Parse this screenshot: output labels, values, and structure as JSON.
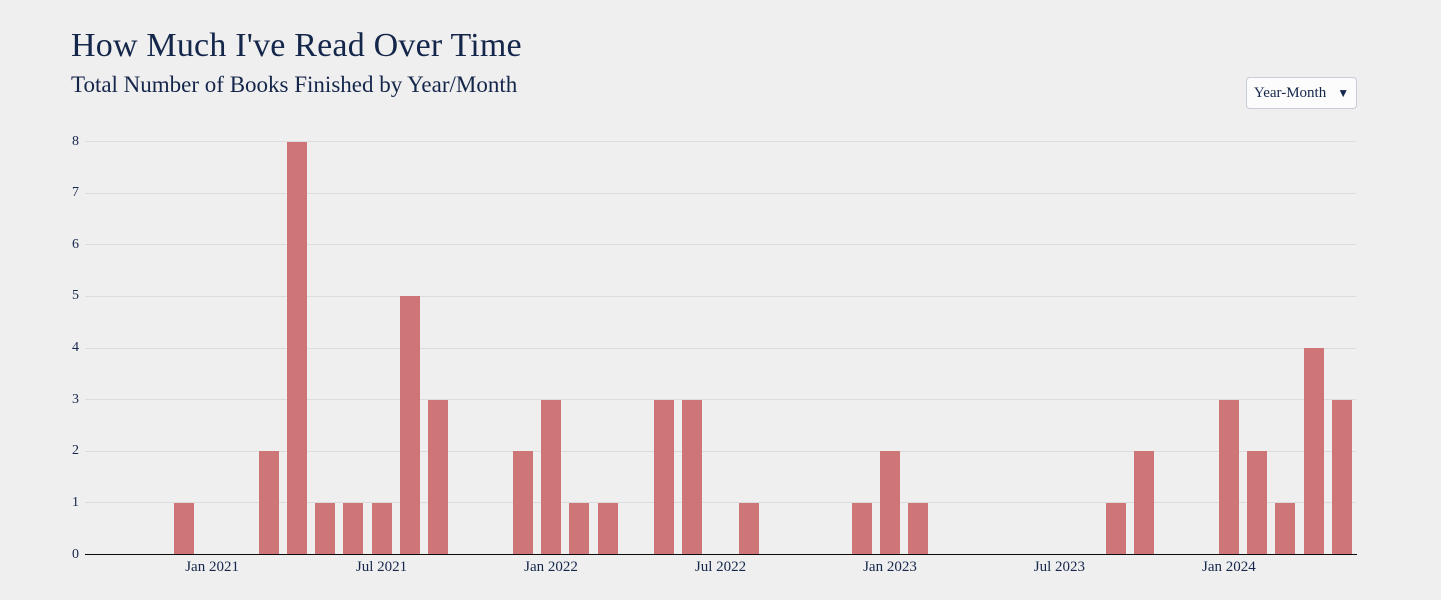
{
  "header": {
    "title": "How Much I've Read Over Time",
    "subtitle": "Total Number of Books Finished by Year/Month"
  },
  "controls": {
    "aggregation_select": {
      "value": "Year-Month",
      "dropdown_icon": "▼"
    }
  },
  "colors": {
    "background": "#efefef",
    "bar": "#ce7677",
    "text": "#14264a",
    "gridline": "#dcdcdc",
    "axis": "#0a0a0a",
    "dropdown_border": "#c9cedb",
    "dropdown_background": "#fcfcfd"
  },
  "chart_data": {
    "type": "bar",
    "title": "How Much I've Read Over Time",
    "subtitle": "Total Number of Books Finished by Year/Month",
    "xlabel": "",
    "ylabel": "",
    "ylim": [
      0,
      8
    ],
    "yticks": [
      0,
      1,
      2,
      3,
      4,
      5,
      6,
      7,
      8
    ],
    "grid": true,
    "legend": false,
    "x": [
      "2020-09",
      "2020-10",
      "2020-11",
      "2020-12",
      "2021-01",
      "2021-02",
      "2021-03",
      "2021-04",
      "2021-05",
      "2021-06",
      "2021-07",
      "2021-08",
      "2021-09",
      "2021-10",
      "2021-11",
      "2021-12",
      "2022-01",
      "2022-02",
      "2022-03",
      "2022-04",
      "2022-05",
      "2022-06",
      "2022-07",
      "2022-08",
      "2022-09",
      "2022-10",
      "2022-11",
      "2022-12",
      "2023-01",
      "2023-02",
      "2023-03",
      "2023-04",
      "2023-05",
      "2023-06",
      "2023-07",
      "2023-08",
      "2023-09",
      "2023-10",
      "2023-11",
      "2023-12",
      "2024-01",
      "2024-02",
      "2024-03",
      "2024-04",
      "2024-05"
    ],
    "values": [
      0,
      0,
      0,
      1,
      0,
      0,
      2,
      8,
      1,
      1,
      1,
      5,
      3,
      0,
      0,
      2,
      3,
      1,
      1,
      0,
      3,
      3,
      0,
      1,
      0,
      0,
      0,
      1,
      2,
      1,
      0,
      0,
      0,
      0,
      0,
      0,
      1,
      2,
      0,
      0,
      3,
      2,
      1,
      4,
      3
    ],
    "xticks": [
      {
        "index": 4,
        "label": "Jan 2021"
      },
      {
        "index": 10,
        "label": "Jul 2021"
      },
      {
        "index": 16,
        "label": "Jan 2022"
      },
      {
        "index": 22,
        "label": "Jul 2022"
      },
      {
        "index": 28,
        "label": "Jan 2023"
      },
      {
        "index": 34,
        "label": "Jul 2023"
      },
      {
        "index": 40,
        "label": "Jan 2024"
      }
    ]
  }
}
